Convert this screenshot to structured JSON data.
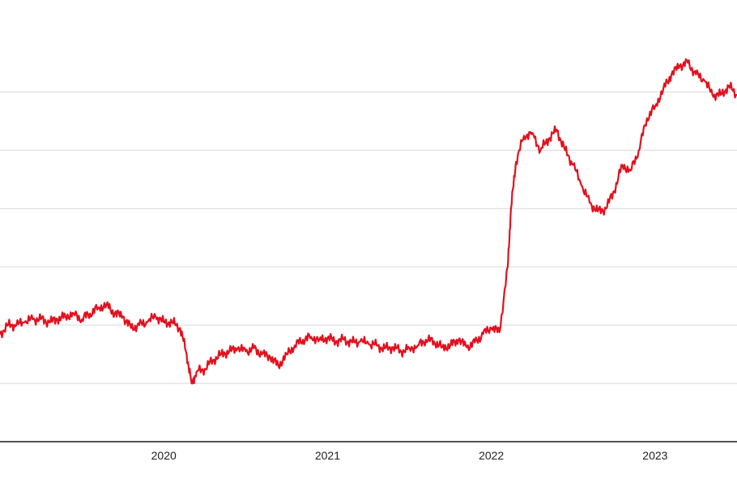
{
  "chart_data": {
    "type": "line",
    "title": "",
    "xlabel": "",
    "ylabel": "",
    "grid": true,
    "x_tick_labels": [
      "2020",
      "2021",
      "2022",
      "2023"
    ],
    "xlim": [
      2019.0,
      2023.5
    ],
    "ylim": [
      0,
      7.3
    ],
    "y_gridlines": [
      1,
      2,
      3,
      4,
      5,
      6
    ],
    "y_tick_labels_visible": false,
    "line_color": "#e3101e",
    "series": [
      {
        "x": [
          2019.0,
          2019.05,
          2019.1,
          2019.15,
          2019.2,
          2019.25,
          2019.3,
          2019.35,
          2019.4,
          2019.45,
          2019.5,
          2019.55,
          2019.6,
          2019.65,
          2019.7,
          2019.75,
          2019.8,
          2019.85,
          2019.9,
          2019.95,
          2020.0,
          2020.05,
          2020.1,
          2020.14,
          2020.17,
          2020.2,
          2020.25,
          2020.3,
          2020.35,
          2020.4,
          2020.45,
          2020.5,
          2020.55,
          2020.6,
          2020.65,
          2020.7,
          2020.75,
          2020.8,
          2020.85,
          2020.9,
          2020.95,
          2021.0,
          2021.05,
          2021.1,
          2021.15,
          2021.2,
          2021.25,
          2021.3,
          2021.35,
          2021.4,
          2021.45,
          2021.5,
          2021.55,
          2021.6,
          2021.65,
          2021.7,
          2021.75,
          2021.8,
          2021.85,
          2021.9,
          2021.95,
          2022.0,
          2022.05,
          2022.1,
          2022.12,
          2022.15,
          2022.2,
          2022.25,
          2022.3,
          2022.35,
          2022.4,
          2022.45,
          2022.5,
          2022.55,
          2022.6,
          2022.65,
          2022.7,
          2022.75,
          2022.8,
          2022.85,
          2022.9,
          2022.95,
          2023.0,
          2023.05,
          2023.1,
          2023.15,
          2023.2,
          2023.25,
          2023.3,
          2023.35,
          2023.4,
          2023.45,
          2023.5
        ],
        "values": [
          1.85,
          2.0,
          2.0,
          2.05,
          2.1,
          2.1,
          2.05,
          2.1,
          2.15,
          2.2,
          2.1,
          2.2,
          2.3,
          2.35,
          2.2,
          2.15,
          1.95,
          2.0,
          2.05,
          2.15,
          2.05,
          2.05,
          1.95,
          1.5,
          1.0,
          1.2,
          1.25,
          1.4,
          1.5,
          1.55,
          1.6,
          1.55,
          1.6,
          1.5,
          1.45,
          1.3,
          1.5,
          1.65,
          1.75,
          1.8,
          1.75,
          1.78,
          1.72,
          1.75,
          1.7,
          1.72,
          1.68,
          1.65,
          1.6,
          1.62,
          1.55,
          1.6,
          1.65,
          1.75,
          1.72,
          1.62,
          1.65,
          1.75,
          1.62,
          1.7,
          1.85,
          1.95,
          1.88,
          3.0,
          4.0,
          4.8,
          5.25,
          5.3,
          5.0,
          5.2,
          5.35,
          5.0,
          4.75,
          4.4,
          4.1,
          3.95,
          4.0,
          4.3,
          4.75,
          4.65,
          5.0,
          5.55,
          5.75,
          6.05,
          6.3,
          6.45,
          6.5,
          6.3,
          6.2,
          5.95,
          5.95,
          6.1,
          5.95
        ]
      }
    ]
  }
}
